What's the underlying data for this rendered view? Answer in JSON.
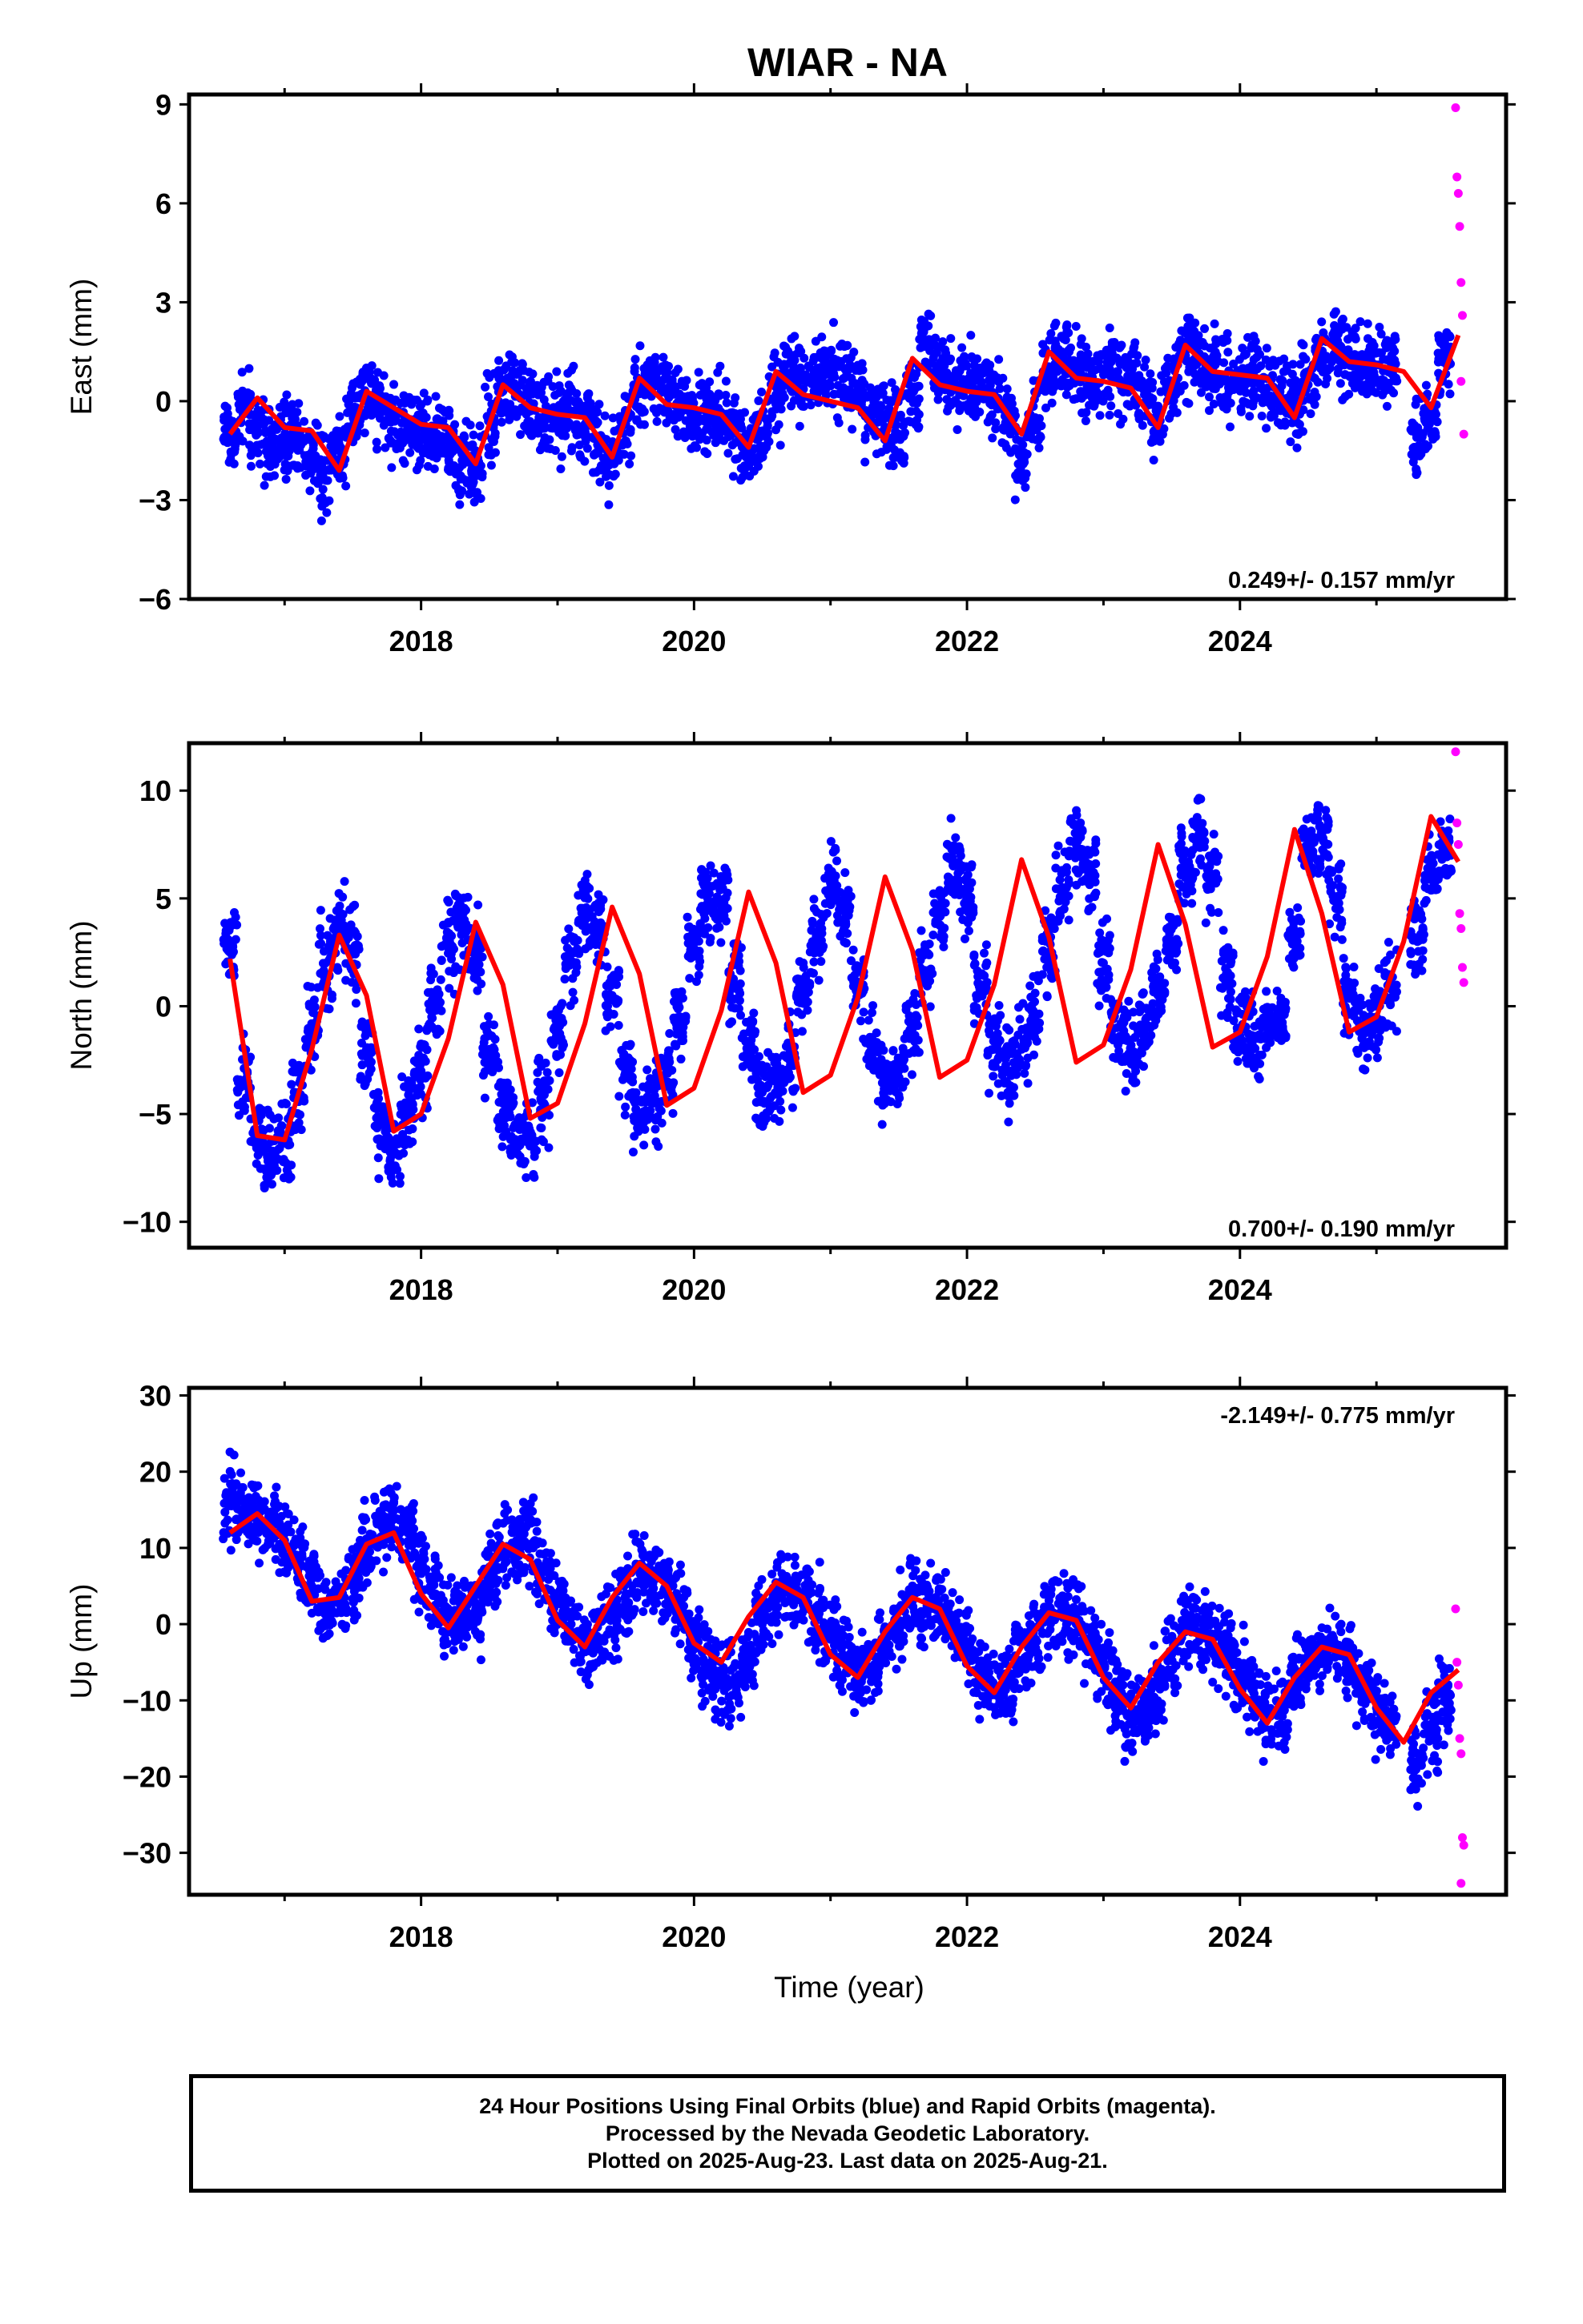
{
  "title": "WIAR - NA",
  "colors": {
    "final": "#0000ff",
    "rapid": "#ff00ff",
    "model": "#ff0000",
    "frame": "#000000"
  },
  "chart_data": [
    {
      "type": "scatter",
      "component": "East",
      "ylabel": "East (mm)",
      "xlabel": "",
      "xlim": [
        2016.3,
        2025.95
      ],
      "ylim": [
        -6,
        9.3
      ],
      "yticks": [
        -6,
        -3,
        0,
        3,
        6,
        9
      ],
      "xticks": [
        2018,
        2020,
        2022,
        2024
      ],
      "rate_label": "0.249+/- 0.157 mm/yr",
      "rate_position": "bottom-right",
      "series": [
        {
          "kind": "final",
          "x": [
            2016.6,
            2016.7,
            2016.8,
            2016.9,
            2017.0,
            2017.1,
            2017.2,
            2017.3,
            2017.4,
            2017.5,
            2017.6,
            2017.7,
            2017.8,
            2017.9,
            2018.0,
            2018.1,
            2018.2,
            2018.3,
            2018.4,
            2018.5,
            2018.6,
            2018.7,
            2018.8,
            2018.9,
            2019.0,
            2019.1,
            2019.2,
            2019.3,
            2019.4,
            2019.5,
            2019.6,
            2019.7,
            2019.8,
            2019.9,
            2020.0,
            2020.1,
            2020.2,
            2020.3,
            2020.4,
            2020.5,
            2020.6,
            2020.7,
            2020.8,
            2020.9,
            2021.0,
            2021.1,
            2021.2,
            2021.3,
            2021.4,
            2021.5,
            2021.6,
            2021.7,
            2021.8,
            2021.9,
            2022.0,
            2022.1,
            2022.2,
            2022.3,
            2022.4,
            2022.5,
            2022.6,
            2022.7,
            2022.8,
            2022.9,
            2023.0,
            2023.1,
            2023.2,
            2023.3,
            2023.4,
            2023.5,
            2023.6,
            2023.7,
            2023.8,
            2023.9,
            2024.0,
            2024.1,
            2024.2,
            2024.3,
            2024.4,
            2024.5,
            2024.6,
            2024.7,
            2024.8,
            2024.9,
            2025.0,
            2025.1,
            2025.3,
            2025.4,
            2025.5
          ],
          "y": [
            -1.0,
            -0.3,
            -0.8,
            -1.4,
            -1.2,
            -1.1,
            -1.6,
            -2.1,
            -1.4,
            -0.2,
            0.2,
            -0.1,
            -0.6,
            -0.9,
            -0.8,
            -1.0,
            -1.2,
            -1.8,
            -1.9,
            -0.6,
            0.3,
            0.4,
            -0.3,
            -0.6,
            -0.6,
            -0.3,
            -0.7,
            -1.4,
            -1.7,
            -0.7,
            0.4,
            0.7,
            0.3,
            -0.2,
            -0.4,
            -0.2,
            -0.4,
            -0.9,
            -1.4,
            -0.9,
            0.2,
            0.8,
            0.7,
            0.9,
            1.0,
            0.7,
            0.4,
            -0.4,
            -0.8,
            -1.0,
            0.4,
            1.8,
            1.0,
            0.6,
            0.5,
            0.4,
            0.2,
            -0.3,
            -1.8,
            -0.5,
            0.9,
            1.3,
            0.8,
            0.5,
            0.8,
            0.9,
            0.6,
            0.2,
            -0.5,
            0.6,
            1.5,
            1.4,
            1.0,
            0.6,
            0.7,
            0.8,
            0.4,
            0.1,
            -0.3,
            0.5,
            1.5,
            1.9,
            1.3,
            1.1,
            1.1,
            1.2,
            -1.0,
            -0.5,
            1.4
          ]
        },
        {
          "kind": "rapid",
          "x": [
            2025.58,
            2025.59,
            2025.6,
            2025.61,
            2025.62,
            2025.63,
            2025.64,
            2025.62
          ],
          "y": [
            8.9,
            6.8,
            6.3,
            5.3,
            3.6,
            2.6,
            -1.0,
            0.6
          ]
        }
      ],
      "model": {
        "x": [
          2016.6,
          2016.8,
          2017.0,
          2017.2,
          2017.4,
          2017.6,
          2017.8,
          2018.0,
          2018.2,
          2018.4,
          2018.6,
          2018.8,
          2019.0,
          2019.2,
          2019.4,
          2019.6,
          2019.8,
          2020.0,
          2020.2,
          2020.4,
          2020.6,
          2020.8,
          2021.0,
          2021.2,
          2021.4,
          2021.6,
          2021.8,
          2022.0,
          2022.2,
          2022.4,
          2022.6,
          2022.8,
          2023.0,
          2023.2,
          2023.4,
          2023.6,
          2023.8,
          2024.0,
          2024.2,
          2024.4,
          2024.6,
          2024.8,
          2025.0,
          2025.2,
          2025.4,
          2025.6
        ],
        "y": [
          -1.0,
          0.1,
          -0.8,
          -0.9,
          -2.1,
          0.3,
          -0.2,
          -0.7,
          -0.8,
          -1.9,
          0.5,
          -0.2,
          -0.4,
          -0.5,
          -1.7,
          0.7,
          -0.1,
          -0.2,
          -0.4,
          -1.4,
          0.9,
          0.2,
          0.0,
          -0.2,
          -1.2,
          1.3,
          0.5,
          0.3,
          0.2,
          -1.0,
          1.5,
          0.7,
          0.6,
          0.4,
          -0.8,
          1.7,
          0.9,
          0.8,
          0.7,
          -0.5,
          1.9,
          1.2,
          1.1,
          0.9,
          -0.2,
          2.0
        ]
      }
    },
    {
      "type": "scatter",
      "component": "North",
      "ylabel": "North (mm)",
      "xlabel": "",
      "xlim": [
        2016.3,
        2025.95
      ],
      "ylim": [
        -11.2,
        12.2
      ],
      "yticks": [
        -10,
        -5,
        0,
        5,
        10
      ],
      "xticks": [
        2018,
        2020,
        2022,
        2024
      ],
      "rate_label": "0.700+/- 0.190 mm/yr",
      "rate_position": "bottom-right",
      "series": [
        {
          "kind": "final",
          "x": [
            2016.6,
            2016.7,
            2016.8,
            2016.9,
            2017.0,
            2017.1,
            2017.2,
            2017.3,
            2017.4,
            2017.5,
            2017.6,
            2017.7,
            2017.8,
            2017.9,
            2018.0,
            2018.1,
            2018.2,
            2018.3,
            2018.4,
            2018.5,
            2018.6,
            2018.7,
            2018.8,
            2018.9,
            2019.0,
            2019.1,
            2019.2,
            2019.3,
            2019.4,
            2019.5,
            2019.6,
            2019.7,
            2019.8,
            2019.9,
            2020.0,
            2020.1,
            2020.2,
            2020.3,
            2020.4,
            2020.5,
            2020.6,
            2020.7,
            2020.8,
            2020.9,
            2021.0,
            2021.1,
            2021.2,
            2021.3,
            2021.4,
            2021.5,
            2021.6,
            2021.7,
            2021.8,
            2021.9,
            2022.0,
            2022.1,
            2022.2,
            2022.3,
            2022.4,
            2022.5,
            2022.6,
            2022.7,
            2022.8,
            2022.9,
            2023.0,
            2023.1,
            2023.2,
            2023.3,
            2023.4,
            2023.5,
            2023.6,
            2023.7,
            2023.8,
            2023.9,
            2024.0,
            2024.1,
            2024.2,
            2024.3,
            2024.4,
            2024.5,
            2024.6,
            2024.7,
            2024.8,
            2024.9,
            2025.0,
            2025.1,
            2025.3,
            2025.4,
            2025.5
          ],
          "y": [
            2.5,
            -3.5,
            -6.0,
            -7.0,
            -6.2,
            -4.0,
            -1.0,
            2.0,
            3.5,
            2.5,
            -2.0,
            -5.5,
            -6.5,
            -5.0,
            -3.0,
            0.0,
            3.0,
            4.0,
            2.5,
            -2.0,
            -4.5,
            -5.5,
            -6.0,
            -4.5,
            -1.0,
            2.5,
            4.5,
            3.5,
            0.5,
            -3.0,
            -5.0,
            -4.5,
            -3.0,
            -0.5,
            2.5,
            5.0,
            4.5,
            1.0,
            -2.0,
            -4.0,
            -3.5,
            -2.5,
            0.5,
            3.0,
            5.5,
            4.5,
            1.0,
            -2.0,
            -3.5,
            -3.0,
            -1.5,
            1.5,
            4.5,
            6.5,
            5.0,
            1.0,
            -2.0,
            -3.0,
            -2.0,
            -0.5,
            2.5,
            5.5,
            7.5,
            6.0,
            2.0,
            -1.0,
            -2.0,
            -1.0,
            0.5,
            3.0,
            6.5,
            8.0,
            6.0,
            1.5,
            -1.0,
            -1.5,
            -1.0,
            -0.5,
            3.0,
            7.5,
            8.0,
            5.0,
            0.5,
            -1.0,
            -0.5,
            1.0,
            3.0,
            6.0,
            7.5
          ]
        },
        {
          "kind": "rapid",
          "x": [
            2025.58,
            2025.59,
            2025.6,
            2025.61,
            2025.62,
            2025.63,
            2025.64
          ],
          "y": [
            11.8,
            8.5,
            7.5,
            4.3,
            3.6,
            1.8,
            1.1
          ]
        }
      ],
      "model": {
        "x": [
          2016.6,
          2016.8,
          2017.0,
          2017.2,
          2017.4,
          2017.6,
          2017.8,
          2018.0,
          2018.2,
          2018.4,
          2018.6,
          2018.8,
          2019.0,
          2019.2,
          2019.4,
          2019.6,
          2019.8,
          2020.0,
          2020.2,
          2020.4,
          2020.6,
          2020.8,
          2021.0,
          2021.2,
          2021.4,
          2021.6,
          2021.8,
          2022.0,
          2022.2,
          2022.4,
          2022.6,
          2022.8,
          2023.0,
          2023.2,
          2023.4,
          2023.6,
          2023.8,
          2024.0,
          2024.2,
          2024.4,
          2024.6,
          2024.8,
          2025.0,
          2025.2,
          2025.4,
          2025.6
        ],
        "y": [
          2.2,
          -6.0,
          -6.2,
          -2.0,
          3.3,
          0.5,
          -5.8,
          -5.0,
          -1.5,
          3.9,
          1.0,
          -5.2,
          -4.5,
          -0.8,
          4.6,
          1.5,
          -4.6,
          -3.8,
          -0.2,
          5.3,
          2.0,
          -4.0,
          -3.2,
          0.4,
          6.0,
          2.6,
          -3.3,
          -2.5,
          1.0,
          6.8,
          3.2,
          -2.6,
          -1.8,
          1.7,
          7.5,
          3.8,
          -1.9,
          -1.2,
          2.3,
          8.2,
          4.3,
          -1.2,
          -0.5,
          3.0,
          8.8,
          6.7
        ]
      }
    },
    {
      "type": "scatter",
      "component": "Up",
      "ylabel": "Up (mm)",
      "xlabel": "Time (year)",
      "xlim": [
        2016.3,
        2025.95
      ],
      "ylim": [
        -35.5,
        31
      ],
      "yticks": [
        -30,
        -20,
        -10,
        0,
        10,
        20,
        30
      ],
      "xticks": [
        2018,
        2020,
        2022,
        2024
      ],
      "rate_label": "-2.149+/- 0.775 mm/yr",
      "rate_position": "top-right",
      "series": [
        {
          "kind": "final",
          "x": [
            2016.6,
            2016.7,
            2016.8,
            2016.9,
            2017.0,
            2017.1,
            2017.2,
            2017.3,
            2017.4,
            2017.5,
            2017.6,
            2017.7,
            2017.8,
            2017.9,
            2018.0,
            2018.1,
            2018.2,
            2018.3,
            2018.4,
            2018.5,
            2018.6,
            2018.7,
            2018.8,
            2018.9,
            2019.0,
            2019.1,
            2019.2,
            2019.3,
            2019.4,
            2019.5,
            2019.6,
            2019.7,
            2019.8,
            2019.9,
            2020.0,
            2020.1,
            2020.2,
            2020.3,
            2020.4,
            2020.5,
            2020.6,
            2020.7,
            2020.8,
            2020.9,
            2021.0,
            2021.1,
            2021.2,
            2021.3,
            2021.4,
            2021.5,
            2021.6,
            2021.7,
            2021.8,
            2021.9,
            2022.0,
            2022.1,
            2022.2,
            2022.3,
            2022.4,
            2022.5,
            2022.6,
            2022.7,
            2022.8,
            2022.9,
            2023.0,
            2023.1,
            2023.2,
            2023.3,
            2023.4,
            2023.5,
            2023.6,
            2023.7,
            2023.8,
            2023.9,
            2024.0,
            2024.1,
            2024.2,
            2024.3,
            2024.4,
            2024.5,
            2024.6,
            2024.7,
            2024.8,
            2024.9,
            2025.0,
            2025.1,
            2025.3,
            2025.4,
            2025.5
          ],
          "y": [
            16,
            15,
            14,
            13,
            11,
            8,
            5,
            2,
            3,
            6,
            10,
            13,
            14,
            12,
            8,
            4,
            1,
            0,
            2,
            6,
            10,
            11,
            10,
            7,
            3,
            0,
            -3,
            -2,
            1,
            4,
            7,
            7,
            5,
            2,
            -2,
            -6,
            -8,
            -7,
            -4,
            0,
            3,
            4,
            3,
            1,
            -2,
            -5,
            -7,
            -6,
            -3,
            0,
            3,
            3,
            2,
            0,
            -3,
            -7,
            -9,
            -8,
            -5,
            -2,
            1,
            1,
            0,
            -2,
            -5,
            -9,
            -12,
            -11,
            -8,
            -4,
            -1,
            -1,
            -2,
            -4,
            -6,
            -9,
            -12,
            -11,
            -8,
            -5,
            -3,
            -3,
            -5,
            -8,
            -11,
            -13,
            -18,
            -14,
            -10
          ]
        },
        {
          "kind": "rapid",
          "x": [
            2025.58,
            2025.59,
            2025.6,
            2025.61,
            2025.62,
            2025.63,
            2025.64,
            2025.62
          ],
          "y": [
            2,
            -5,
            -8,
            -15,
            -17,
            -28,
            -29,
            -34
          ]
        }
      ],
      "model": {
        "x": [
          2016.6,
          2016.8,
          2017.0,
          2017.2,
          2017.4,
          2017.6,
          2017.8,
          2018.0,
          2018.2,
          2018.4,
          2018.6,
          2018.8,
          2019.0,
          2019.2,
          2019.4,
          2019.6,
          2019.8,
          2020.0,
          2020.2,
          2020.4,
          2020.6,
          2020.8,
          2021.0,
          2021.2,
          2021.4,
          2021.6,
          2021.8,
          2022.0,
          2022.2,
          2022.4,
          2022.6,
          2022.8,
          2023.0,
          2023.2,
          2023.4,
          2023.6,
          2023.8,
          2024.0,
          2024.2,
          2024.4,
          2024.6,
          2024.8,
          2025.0,
          2025.2,
          2025.4,
          2025.6
        ],
        "y": [
          12.0,
          14.5,
          11.0,
          3.0,
          3.5,
          10.5,
          12.0,
          4.0,
          -0.5,
          5.0,
          10.5,
          8.5,
          0.5,
          -3.0,
          3.5,
          8.0,
          5.0,
          -2.5,
          -5.0,
          1.0,
          5.5,
          3.5,
          -4.0,
          -7.0,
          -1.0,
          3.5,
          2.0,
          -5.5,
          -9.0,
          -3.0,
          1.5,
          0.5,
          -7.0,
          -11.0,
          -5.0,
          -1.0,
          -2.0,
          -8.5,
          -13.0,
          -7.0,
          -3.0,
          -4.0,
          -11.0,
          -15.5,
          -9.0,
          -6.0
        ]
      }
    }
  ],
  "footer": {
    "line1": "24 Hour Positions Using Final Orbits (blue) and Rapid Orbits (magenta).",
    "line2": "Processed by the Nevada Geodetic Laboratory.",
    "line3": "Plotted on 2025-Aug-23. Last data on 2025-Aug-21."
  }
}
